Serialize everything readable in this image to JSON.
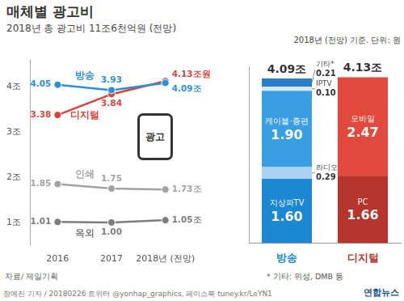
{
  "title": "매체별 광고비",
  "subtitle": "2018년 총 광고비 11조6천억원 (전망)",
  "chart_data": [
    {
      "type": "line",
      "categories": [
        "2016",
        "2017",
        "2018년 (전망)"
      ],
      "series": [
        {
          "name": "방송",
          "color": "#2d8fdb",
          "marker": "circle",
          "values": [
            4.05,
            3.93,
            4.09
          ],
          "value_labels": [
            "4.05",
            "3.93",
            "4.09조"
          ]
        },
        {
          "name": "디지털",
          "color": "#d9443a",
          "marker": "circle",
          "values": [
            3.38,
            3.84,
            4.13
          ],
          "value_labels": [
            "3.38",
            "3.84",
            "4.13조원"
          ]
        },
        {
          "name": "인쇄",
          "color": "#a3a3a3",
          "marker": "circle",
          "values": [
            1.85,
            1.75,
            1.73
          ],
          "value_labels": [
            "1.85",
            "1.75",
            "1.73조"
          ]
        },
        {
          "name": "옥외",
          "color": "#7d7d7d",
          "marker": "circle",
          "values": [
            1.01,
            1.0,
            1.05
          ],
          "value_labels": [
            "1.01",
            "1.00",
            "1.05조"
          ]
        }
      ],
      "ylim": [
        0.5,
        4.6
      ],
      "yticks": [
        {
          "value": 1,
          "label": "1조"
        },
        {
          "value": 2,
          "label": "2조"
        },
        {
          "value": 3,
          "label": "3조"
        },
        {
          "value": 4,
          "label": "4조"
        }
      ],
      "grid": false,
      "data_labels": true,
      "annotations": [
        {
          "text": "광고"
        }
      ]
    },
    {
      "type": "bar",
      "subtitle": "2018년 (전망) 기준. 단위: 원",
      "categories": [
        "방송",
        "디지털"
      ],
      "stacked": true,
      "data_labels": true,
      "tick_labels": "x",
      "grid": false,
      "ylim": [
        0,
        4.4
      ],
      "yticks": [],
      "series": [
        {
          "name": "지상파TV",
          "color": "#1c87d2",
          "values": [
            1.6,
            null
          ],
          "value_labels": [
            "1.60",
            null
          ]
        },
        {
          "name": "라디오",
          "color": "#a9d3f0",
          "values": [
            0.29,
            null
          ],
          "value_labels": [
            "0.29",
            null
          ]
        },
        {
          "name": "케이블·종편",
          "color": "#3a9ee2",
          "values": [
            1.9,
            null
          ],
          "value_labels": [
            "1.90",
            null
          ]
        },
        {
          "name": "IPTV",
          "color": "#d3eafa",
          "values": [
            0.1,
            null
          ],
          "value_labels": [
            "0.10",
            null
          ]
        },
        {
          "name": "기타*",
          "color": "#2a7dc2",
          "values": [
            0.21,
            null
          ],
          "value_labels": [
            "0.21",
            null
          ]
        },
        {
          "name": "PC",
          "color": "#b5342b",
          "values": [
            null,
            1.66
          ],
          "value_labels": [
            null,
            "1.66"
          ]
        },
        {
          "name": "모바일",
          "color": "#e0493c",
          "values": [
            null,
            2.47
          ],
          "value_labels": [
            null,
            "2.47"
          ]
        }
      ],
      "totals": [
        4.09,
        4.13
      ],
      "total_labels": [
        "4.09조",
        "4.13조"
      ],
      "footnote": "* 기타: 위성, DMB 등"
    }
  ],
  "source": "자료/ 제일기획",
  "credit": "장예진 기자 / 20180226 트위터 @yonhap_graphics, 페이스북 tuney.kr/LeYN1",
  "logo": "연합뉴스"
}
